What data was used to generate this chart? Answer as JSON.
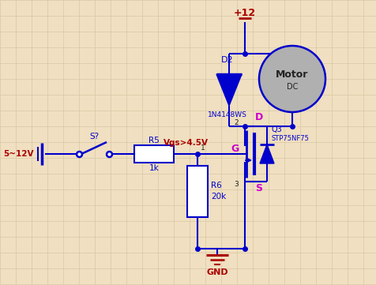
{
  "bg_color": "#f0dfc0",
  "wire_color": "#0000cc",
  "label_color_blue": "#0000cc",
  "label_color_red": "#aa0000",
  "label_color_magenta": "#cc00cc",
  "label_color_dark": "#222222",
  "grid_color": "#d4c4a0",
  "vdd_label": "+12",
  "gnd_label": "GND",
  "vsrc_label": "5~12V",
  "switch_label": "S?",
  "r5_label": "R5",
  "r5_val": "1k",
  "r6_label": "R6",
  "r6_val": "20k",
  "d2_label": "D2",
  "d2_val": "1N4148WS",
  "q3_label": "Q3",
  "q3_val": "STP75NF75",
  "motor_label": "Motor",
  "motor_sub": "DC",
  "vgs_label": "Vgs>4.5V",
  "g_label": "G",
  "d_label": "D",
  "s_label": "S",
  "node1_label": "1",
  "node2_label": "2",
  "node3_label": "3",
  "figsize": [
    4.77,
    3.61
  ],
  "dpi": 100
}
